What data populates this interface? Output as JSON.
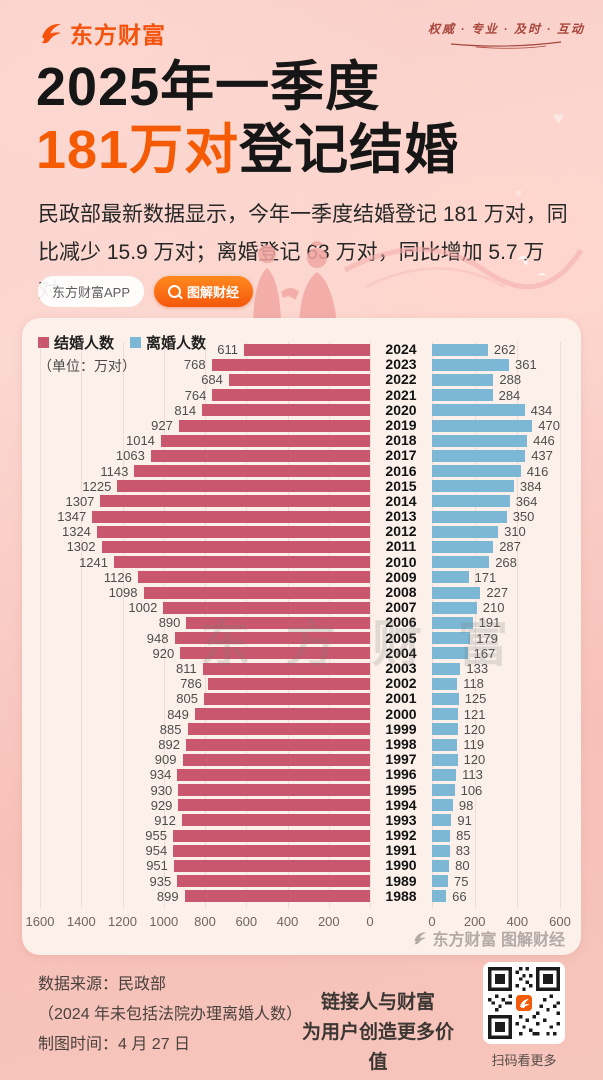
{
  "header": {
    "logo_text": "东方财富",
    "slogan": "权威 · 专业 · 及时 · 互动"
  },
  "title": {
    "line1": "2025年一季度",
    "line2_highlight": "181万对",
    "line2_rest": "登记结婚"
  },
  "description": "民政部最新数据显示，今年一季度结婚登记 181 万对，同比减少 15.9 万对；离婚登记 63 万对，同比增加 5.7 万对。",
  "buttons": {
    "app_label": "东方财富APP",
    "search_label": "图解财经"
  },
  "chart_data": {
    "type": "bar",
    "orientation": "horizontal-diverging",
    "unit_note": "（单位：万对）",
    "legend": [
      {
        "label": "结婚人数",
        "color": "#c9586e"
      },
      {
        "label": "离婚人数",
        "color": "#7cb7d6"
      }
    ],
    "years": [
      2024,
      2023,
      2022,
      2021,
      2020,
      2019,
      2018,
      2017,
      2016,
      2015,
      2014,
      2013,
      2012,
      2011,
      2010,
      2009,
      2008,
      2007,
      2006,
      2005,
      2004,
      2003,
      2002,
      2001,
      2000,
      1999,
      1998,
      1997,
      1996,
      1995,
      1994,
      1993,
      1992,
      1991,
      1990,
      1989,
      1988
    ],
    "series": [
      {
        "name": "结婚人数",
        "values": [
          611,
          768,
          684,
          764,
          814,
          927,
          1014,
          1063,
          1143,
          1225,
          1307,
          1347,
          1324,
          1302,
          1241,
          1126,
          1098,
          1002,
          890,
          948,
          920,
          811,
          786,
          805,
          849,
          885,
          892,
          909,
          934,
          930,
          929,
          912,
          955,
          954,
          951,
          935,
          899
        ]
      },
      {
        "name": "离婚人数",
        "values": [
          262,
          361,
          288,
          284,
          434,
          470,
          446,
          437,
          416,
          384,
          364,
          350,
          310,
          287,
          268,
          171,
          227,
          210,
          191,
          179,
          167,
          133,
          118,
          125,
          121,
          120,
          119,
          120,
          113,
          106,
          98,
          91,
          85,
          83,
          80,
          75,
          66
        ]
      }
    ],
    "left_axis_ticks": [
      1600,
      1400,
      1200,
      1000,
      800,
      600,
      400,
      200,
      0
    ],
    "right_axis_ticks": [
      0,
      200,
      400,
      600
    ],
    "left_axis_max": 1600,
    "right_axis_max": 600,
    "grid": true,
    "watermark": "东方财富",
    "brand_watermark": "东方财富 图解财经"
  },
  "footer": {
    "source_line1": "数据来源：民政部",
    "source_line2": "（2024 年未包括法院办理离婚人数）",
    "source_line3": "制图时间：4 月 27 日",
    "slogan_line1": "链接人与财富",
    "slogan_line2": "为用户创造更多价值",
    "qr_caption": "扫码看更多"
  },
  "colors": {
    "brand_orange": "#f4520d",
    "title_highlight": "#f55b04",
    "marriage_bar": "#c9586e",
    "divorce_bar": "#7cb7d6",
    "panel_bg": "#fcf1ea",
    "page_bg_top": "#f9cfc8",
    "page_bg_bottom": "#f6c5bb"
  }
}
